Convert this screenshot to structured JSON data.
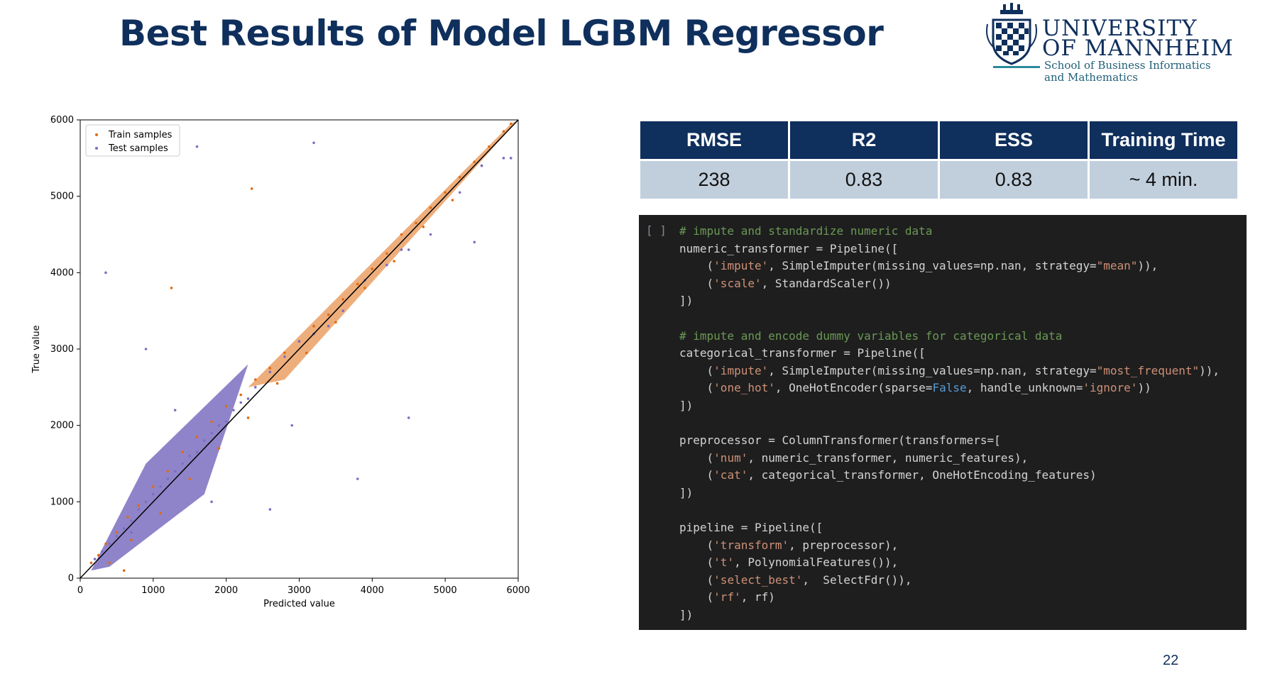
{
  "slide": {
    "title": "Best Results of Model LGBM Regressor",
    "page_number": "22"
  },
  "logo": {
    "line1": "UNIVERSITY",
    "line2": "OF MANNHEIM",
    "sub1": "School of Business Informatics",
    "sub2": "and Mathematics"
  },
  "metrics": {
    "headers": [
      "RMSE",
      "R2",
      "ESS",
      "Training Time"
    ],
    "values": [
      "238",
      "0.83",
      "0.83",
      "~ 4 min."
    ]
  },
  "code": {
    "run_marker": "[ ]",
    "lines": [
      [
        {
          "t": "# impute and standardize numeric data",
          "c": "comment"
        }
      ],
      [
        {
          "t": "numeric_transformer = Pipeline([",
          "c": "plain"
        }
      ],
      [
        {
          "t": "    (",
          "c": "plain"
        },
        {
          "t": "'impute'",
          "c": "string"
        },
        {
          "t": ", SimpleImputer(missing_values=np.nan, strategy=",
          "c": "plain"
        },
        {
          "t": "\"mean\"",
          "c": "string"
        },
        {
          "t": ")),",
          "c": "plain"
        }
      ],
      [
        {
          "t": "    (",
          "c": "plain"
        },
        {
          "t": "'scale'",
          "c": "string"
        },
        {
          "t": ", StandardScaler())",
          "c": "plain"
        }
      ],
      [
        {
          "t": "])",
          "c": "plain"
        }
      ],
      [],
      [
        {
          "t": "# impute and encode dummy variables for categorical data",
          "c": "comment"
        }
      ],
      [
        {
          "t": "categorical_transformer = Pipeline([",
          "c": "plain"
        }
      ],
      [
        {
          "t": "    (",
          "c": "plain"
        },
        {
          "t": "'impute'",
          "c": "string"
        },
        {
          "t": ", SimpleImputer(missing_values=np.nan, strategy=",
          "c": "plain"
        },
        {
          "t": "\"most_frequent\"",
          "c": "string"
        },
        {
          "t": ")),",
          "c": "plain"
        }
      ],
      [
        {
          "t": "    (",
          "c": "plain"
        },
        {
          "t": "'one_hot'",
          "c": "string"
        },
        {
          "t": ", OneHotEncoder(sparse=",
          "c": "plain"
        },
        {
          "t": "False",
          "c": "keyword"
        },
        {
          "t": ", handle_unknown=",
          "c": "plain"
        },
        {
          "t": "'ignore'",
          "c": "string"
        },
        {
          "t": "))",
          "c": "plain"
        }
      ],
      [
        {
          "t": "])",
          "c": "plain"
        }
      ],
      [],
      [
        {
          "t": "preprocessor = ColumnTransformer(transformers=[",
          "c": "plain"
        }
      ],
      [
        {
          "t": "    (",
          "c": "plain"
        },
        {
          "t": "'num'",
          "c": "string"
        },
        {
          "t": ", numeric_transformer, numeric_features),",
          "c": "plain"
        }
      ],
      [
        {
          "t": "    (",
          "c": "plain"
        },
        {
          "t": "'cat'",
          "c": "string"
        },
        {
          "t": ", categorical_transformer, OneHotEncoding_features)",
          "c": "plain"
        }
      ],
      [
        {
          "t": "])",
          "c": "plain"
        }
      ],
      [],
      [
        {
          "t": "pipeline = Pipeline([",
          "c": "plain"
        }
      ],
      [
        {
          "t": "    (",
          "c": "plain"
        },
        {
          "t": "'transform'",
          "c": "string"
        },
        {
          "t": ", preprocessor),",
          "c": "plain"
        }
      ],
      [
        {
          "t": "    (",
          "c": "plain"
        },
        {
          "t": "'t'",
          "c": "string"
        },
        {
          "t": ", PolynomialFeatures()),",
          "c": "plain"
        }
      ],
      [
        {
          "t": "    (",
          "c": "plain"
        },
        {
          "t": "'select_best'",
          "c": "string"
        },
        {
          "t": ",  SelectFdr()),",
          "c": "plain"
        }
      ],
      [
        {
          "t": "    (",
          "c": "plain"
        },
        {
          "t": "'rf'",
          "c": "string"
        },
        {
          "t": ", rf)",
          "c": "plain"
        }
      ],
      [
        {
          "t": "])",
          "c": "plain"
        }
      ]
    ],
    "colors": {
      "plain": "#d4d4d4",
      "comment": "#6a9955",
      "string": "#ce9178",
      "keyword": "#569cd6"
    }
  },
  "chart_data": {
    "type": "scatter",
    "title": "",
    "xlabel": "Predicted value",
    "ylabel": "True value",
    "xlim": [
      0,
      6000
    ],
    "ylim": [
      0,
      6000
    ],
    "x_ticks": [
      0,
      1000,
      2000,
      3000,
      4000,
      5000,
      6000
    ],
    "y_ticks": [
      0,
      1000,
      2000,
      3000,
      4000,
      5000,
      6000
    ],
    "legend_position": "top-left",
    "grid": false,
    "reference_line": {
      "from": [
        0,
        0
      ],
      "to": [
        6000,
        6000
      ],
      "color": "#000000"
    },
    "series": [
      {
        "name": "Train samples",
        "color": "#e06b10",
        "x": [
          150,
          250,
          350,
          500,
          650,
          800,
          1000,
          1200,
          1400,
          1600,
          1800,
          2000,
          2200,
          2400,
          2600,
          2800,
          3000,
          3200,
          3400,
          3600,
          3800,
          4000,
          4200,
          4400,
          4600,
          4800,
          5000,
          5200,
          5400,
          5600,
          5800,
          5900,
          400,
          700,
          1100,
          1500,
          1900,
          2300,
          2700,
          3100,
          3500,
          3900,
          4300,
          4700,
          5100,
          5500,
          1250,
          2350,
          600,
          900
        ],
        "y": [
          200,
          300,
          450,
          600,
          800,
          950,
          1200,
          1400,
          1650,
          1850,
          2050,
          2250,
          2400,
          2600,
          2750,
          2950,
          3100,
          3300,
          3450,
          3650,
          3850,
          4050,
          4250,
          4500,
          4650,
          4850,
          5050,
          5250,
          5450,
          5650,
          5850,
          5950,
          200,
          500,
          850,
          1300,
          1700,
          2100,
          2550,
          2950,
          3350,
          3800,
          4150,
          4600,
          4950,
          5400,
          3800,
          5100,
          100,
          1000
        ]
      },
      {
        "name": "Test samples",
        "color": "#7b6fc0",
        "x": [
          200,
          300,
          400,
          500,
          600,
          700,
          800,
          900,
          1000,
          1100,
          1200,
          1300,
          1400,
          1500,
          1600,
          1700,
          1800,
          1900,
          2000,
          2100,
          2200,
          2300,
          2400,
          2600,
          2800,
          3000,
          3200,
          3400,
          3600,
          3900,
          4200,
          4500,
          4800,
          5200,
          5500,
          5800,
          350,
          1600,
          3200,
          4400,
          4500,
          5900,
          900,
          1300,
          700,
          2600,
          3800,
          1800,
          2900,
          5400
        ],
        "y": [
          250,
          350,
          450,
          550,
          650,
          750,
          900,
          1000,
          1100,
          1200,
          1300,
          1400,
          1500,
          1600,
          1650,
          1800,
          1900,
          2000,
          2050,
          2200,
          2300,
          2350,
          2500,
          2700,
          2900,
          3100,
          3200,
          3300,
          3500,
          3900,
          4100,
          4300,
          4500,
          5050,
          5400,
          5500,
          4000,
          5650,
          5700,
          4300,
          2100,
          5500,
          3000,
          2200,
          600,
          900,
          1300,
          1000,
          2000,
          4400
        ]
      }
    ]
  }
}
